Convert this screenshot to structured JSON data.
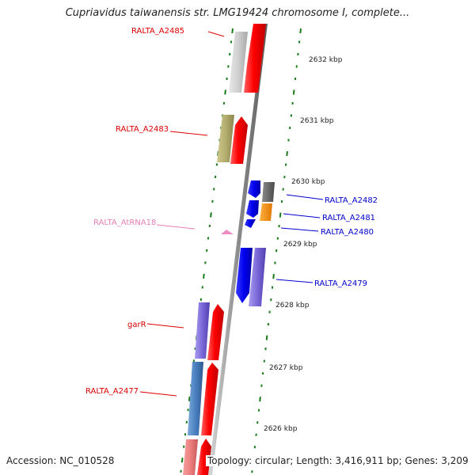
{
  "header": {
    "title": "Cupriavidus taiwanensis str. LMG19424 chromosome I, complete..."
  },
  "footer": {
    "accession": "Accession: NC_010528",
    "summary": "Topology: circular; Length: 3,416,911 bp; Genes: 3,209"
  },
  "colors": {
    "red_label": "#dd0000",
    "blue_label": "#0000cc",
    "trna_label": "#e87fb5",
    "tick_green": "#1a7a1a",
    "backbone": "#999999"
  },
  "scale_ticks": [
    {
      "label": "2632 kbp"
    },
    {
      "label": "2631 kbp"
    },
    {
      "label": "2630 kbp"
    },
    {
      "label": "2629 kbp"
    },
    {
      "label": "2628 kbp"
    },
    {
      "label": "2627 kbp"
    },
    {
      "label": "2626 kbp"
    }
  ],
  "gene_labels": [
    {
      "name": "RALTA_A2485",
      "color": "red"
    },
    {
      "name": "RALTA_A2483",
      "color": "red"
    },
    {
      "name": "RALTA_AtRNA18",
      "color": "trna"
    },
    {
      "name": "garR",
      "color": "red"
    },
    {
      "name": "RALTA_A2477",
      "color": "red"
    },
    {
      "name": "RALTA_A2482",
      "color": "blue"
    },
    {
      "name": "RALTA_A2481",
      "color": "blue"
    },
    {
      "name": "RALTA_A2480",
      "color": "blue"
    },
    {
      "name": "RALTA_A2479",
      "color": "blue"
    }
  ]
}
